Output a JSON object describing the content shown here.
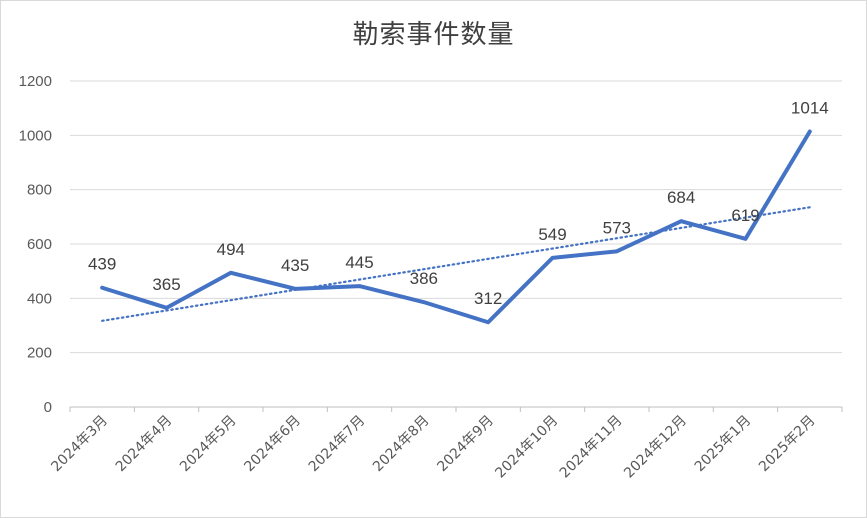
{
  "chart_data": {
    "type": "line",
    "title": "勒索事件数量",
    "categories": [
      "2024年3月",
      "2024年4月",
      "2024年5月",
      "2024年6月",
      "2024年7月",
      "2024年8月",
      "2024年9月",
      "2024年10月",
      "2024年11月",
      "2024年12月",
      "2025年1月",
      "2025年2月"
    ],
    "series": [
      {
        "values": [
          439,
          365,
          494,
          435,
          445,
          386,
          312,
          549,
          573,
          684,
          619,
          1014
        ],
        "color": "#4472C4",
        "data_labels": true
      }
    ],
    "trendline": {
      "type": "linear",
      "style": "dotted",
      "color": "#4472C4"
    },
    "ylim": [
      0,
      1200
    ],
    "yticks": [
      0,
      200,
      400,
      600,
      800,
      1000,
      1200
    ],
    "grid": true,
    "legend": "none"
  }
}
